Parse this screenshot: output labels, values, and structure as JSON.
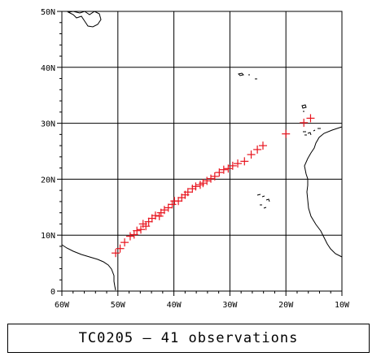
{
  "caption": "TC0205 – 41 observations",
  "chart_data": {
    "type": "scatter",
    "title": "",
    "xlim": [
      -60,
      -10
    ],
    "ylim": [
      0,
      50
    ],
    "grid": true,
    "x_ticks": [
      "60W",
      "50W",
      "40W",
      "30W",
      "20W",
      "10W"
    ],
    "y_ticks": [
      "0",
      "10N",
      "20N",
      "30N",
      "40N",
      "50N"
    ],
    "marker": "plus",
    "marker_color": "#e8141e",
    "series": [
      {
        "points": [
          [
            -50.4,
            6.8
          ],
          [
            -49.6,
            7.6
          ],
          [
            -48.8,
            8.7
          ],
          [
            -47.8,
            9.8
          ],
          [
            -47.1,
            10.1
          ],
          [
            -46.6,
            10.8
          ],
          [
            -45.9,
            11.0
          ],
          [
            -45.5,
            12.0
          ],
          [
            -45.0,
            11.6
          ],
          [
            -44.5,
            12.4
          ],
          [
            -43.9,
            13.0
          ],
          [
            -43.3,
            13.5
          ],
          [
            -42.6,
            13.4
          ],
          [
            -42.3,
            14.0
          ],
          [
            -41.7,
            14.5
          ],
          [
            -41.0,
            14.9
          ],
          [
            -40.3,
            15.5
          ],
          [
            -39.9,
            16.1
          ],
          [
            -39.2,
            16.1
          ],
          [
            -38.6,
            16.7
          ],
          [
            -38.0,
            17.2
          ],
          [
            -37.5,
            17.7
          ],
          [
            -36.7,
            18.3
          ],
          [
            -36.1,
            18.7
          ],
          [
            -35.3,
            19.0
          ],
          [
            -34.8,
            19.3
          ],
          [
            -34.1,
            19.7
          ],
          [
            -33.4,
            20.1
          ],
          [
            -32.7,
            20.5
          ],
          [
            -31.9,
            21.2
          ],
          [
            -31.1,
            21.7
          ],
          [
            -30.3,
            21.9
          ],
          [
            -29.5,
            22.4
          ],
          [
            -28.6,
            22.8
          ],
          [
            -27.4,
            23.2
          ],
          [
            -26.2,
            24.4
          ],
          [
            -25.1,
            25.3
          ],
          [
            -24.1,
            26.0
          ],
          [
            -20.0,
            28.1
          ],
          [
            -16.8,
            30.1
          ],
          [
            -15.6,
            30.9
          ]
        ]
      }
    ]
  },
  "map_style": {
    "grid_color": "#000000",
    "land_outline_color": "#000000"
  }
}
